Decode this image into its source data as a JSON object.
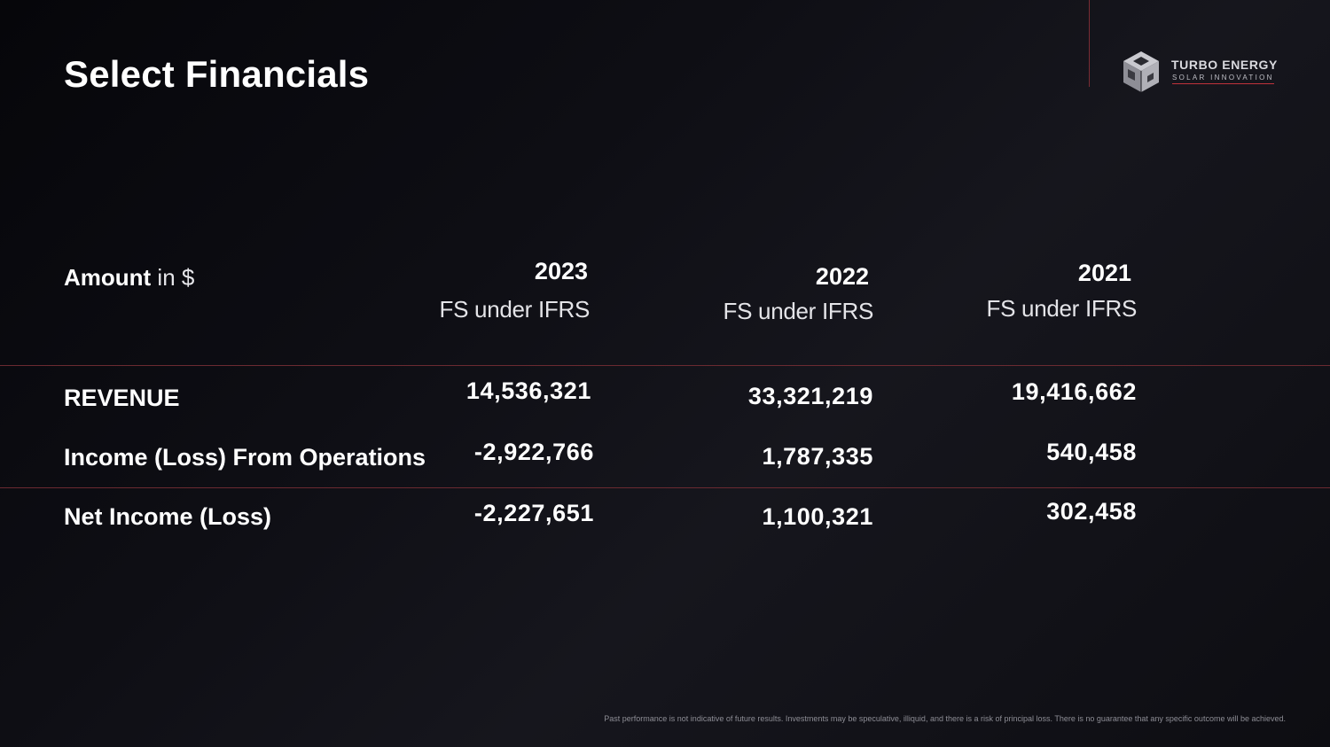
{
  "header": {
    "title": "Select Financials"
  },
  "logo": {
    "name": "TURBO ENERGY",
    "tagline": "SOLAR INNOVATION",
    "icon": "cube-icon"
  },
  "table": {
    "amount_label_bold": "Amount",
    "amount_label_rest": " in $",
    "columns": [
      {
        "year": "2023",
        "basis": "FS under  IFRS"
      },
      {
        "year": "2022",
        "basis": "FS under IFRS"
      },
      {
        "year": "2021",
        "basis": "FS under IFRS"
      }
    ],
    "rows": [
      {
        "label": "REVENUE",
        "values": [
          "14,536,321",
          "33,321,219",
          "19,416,662"
        ]
      },
      {
        "label": "Income (Loss) From Operations",
        "values": [
          "-2,922,766",
          "1,787,335",
          "540,458"
        ]
      },
      {
        "label": "Net Income (Loss)",
        "values": [
          "-2,227,651",
          "1,100,321",
          "302,458"
        ]
      }
    ]
  },
  "footer": {
    "disclaimer": "Past performance is not indicative of future results. Investments may be speculative, illiquid, and there is a risk of principal loss. There is no guarantee that any specific outcome will be achieved."
  },
  "colors": {
    "accent": "#c0323b",
    "background": "#0e0e14",
    "text": "#ffffff"
  }
}
